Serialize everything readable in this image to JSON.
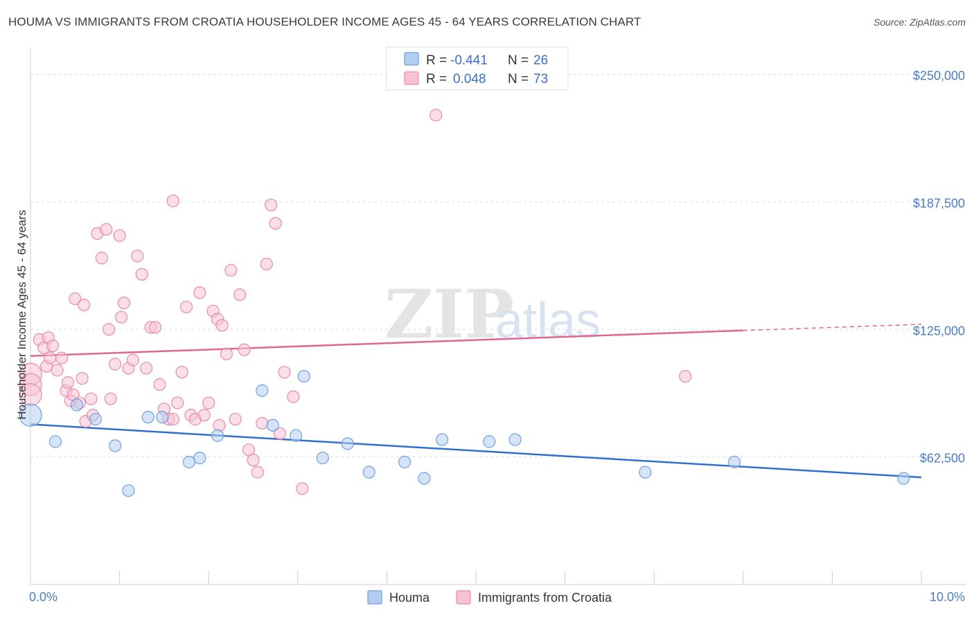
{
  "title": "HOUMA VS IMMIGRANTS FROM CROATIA HOUSEHOLDER INCOME AGES 45 - 64 YEARS CORRELATION CHART",
  "source": "Source: ZipAtlas.com",
  "watermark": {
    "zip": "ZIP",
    "atlas": "atlas"
  },
  "colors": {
    "houma_fill": "#b3cdf0",
    "houma_stroke": "#6f9fe0",
    "houma_line": "#2f6fcf",
    "croatia_fill": "#f7c3d3",
    "croatia_stroke": "#e88aa8",
    "croatia_line": "#e0668f",
    "grid": "#dddddd",
    "axis_text": "#4a7cc7"
  },
  "legend_stats": [
    {
      "r_label": "R =",
      "r_value": "-0.441",
      "n_label": "N =",
      "n_value": "26"
    },
    {
      "r_label": "R =",
      "r_value": "0.048",
      "n_label": "N =",
      "n_value": "73"
    }
  ],
  "chart_data": {
    "type": "scatter",
    "title": "HOUMA VS IMMIGRANTS FROM CROATIA HOUSEHOLDER INCOME AGES 45 - 64 YEARS CORRELATION CHART",
    "xlabel": "",
    "ylabel": "Householder Income Ages 45 - 64 years",
    "xlim": [
      0,
      10
    ],
    "ylim": [
      0,
      260000
    ],
    "x_tick_labels": [
      "0.0%",
      "10.0%"
    ],
    "y_ticks": [
      62500,
      125000,
      187500,
      250000
    ],
    "y_tick_labels": [
      "$62,500",
      "$125,000",
      "$187,500",
      "$250,000"
    ],
    "grid": true,
    "legend_position": "bottom-center",
    "series": [
      {
        "name": "Houma",
        "points": [
          [
            0.0,
            83000
          ],
          [
            0.28,
            70000
          ],
          [
            0.52,
            88000
          ],
          [
            0.73,
            81000
          ],
          [
            0.95,
            68000
          ],
          [
            1.1,
            46000
          ],
          [
            1.32,
            82000
          ],
          [
            1.48,
            82000
          ],
          [
            1.78,
            60000
          ],
          [
            1.9,
            62000
          ],
          [
            2.1,
            73000
          ],
          [
            2.6,
            95000
          ],
          [
            2.72,
            78000
          ],
          [
            2.98,
            73000
          ],
          [
            3.07,
            102000
          ],
          [
            3.28,
            62000
          ],
          [
            3.56,
            69000
          ],
          [
            3.8,
            55000
          ],
          [
            4.2,
            60000
          ],
          [
            4.42,
            52000
          ],
          [
            4.62,
            71000
          ],
          [
            5.15,
            70000
          ],
          [
            5.44,
            71000
          ],
          [
            6.9,
            55000
          ],
          [
            7.9,
            60000
          ],
          [
            9.8,
            52000
          ]
        ],
        "trend": {
          "x": [
            0.0,
            10.0
          ],
          "y": [
            78500,
            52500
          ]
        }
      },
      {
        "name": "Immigrants from Croatia",
        "points": [
          [
            0.0,
            103000
          ],
          [
            0.0,
            98000
          ],
          [
            0.0,
            93000
          ],
          [
            0.1,
            120000
          ],
          [
            0.15,
            116000
          ],
          [
            0.18,
            107000
          ],
          [
            0.2,
            121000
          ],
          [
            0.22,
            111000
          ],
          [
            0.25,
            117000
          ],
          [
            0.3,
            105000
          ],
          [
            0.35,
            111000
          ],
          [
            0.4,
            95000
          ],
          [
            0.42,
            99000
          ],
          [
            0.45,
            90000
          ],
          [
            0.48,
            93000
          ],
          [
            0.5,
            140000
          ],
          [
            0.55,
            89000
          ],
          [
            0.6,
            137000
          ],
          [
            0.62,
            80000
          ],
          [
            0.7,
            83000
          ],
          [
            0.75,
            172000
          ],
          [
            0.8,
            160000
          ],
          [
            0.85,
            174000
          ],
          [
            0.9,
            91000
          ],
          [
            0.95,
            108000
          ],
          [
            1.0,
            171000
          ],
          [
            1.05,
            138000
          ],
          [
            1.1,
            106000
          ],
          [
            1.15,
            110000
          ],
          [
            1.2,
            161000
          ],
          [
            1.25,
            152000
          ],
          [
            1.3,
            106000
          ],
          [
            1.35,
            126000
          ],
          [
            1.4,
            126000
          ],
          [
            1.5,
            86000
          ],
          [
            1.55,
            81000
          ],
          [
            1.6,
            188000
          ],
          [
            1.65,
            89000
          ],
          [
            1.7,
            104000
          ],
          [
            1.75,
            136000
          ],
          [
            1.8,
            83000
          ],
          [
            1.85,
            81000
          ],
          [
            1.9,
            143000
          ],
          [
            1.95,
            83000
          ],
          [
            2.0,
            89000
          ],
          [
            2.05,
            134000
          ],
          [
            2.1,
            130000
          ],
          [
            2.15,
            127000
          ],
          [
            2.2,
            113000
          ],
          [
            2.25,
            154000
          ],
          [
            2.3,
            81000
          ],
          [
            2.35,
            142000
          ],
          [
            2.4,
            115000
          ],
          [
            2.45,
            66000
          ],
          [
            2.5,
            61000
          ],
          [
            2.55,
            55000
          ],
          [
            2.6,
            79000
          ],
          [
            2.65,
            157000
          ],
          [
            2.7,
            186000
          ],
          [
            2.75,
            177000
          ],
          [
            2.8,
            74000
          ],
          [
            2.85,
            104000
          ],
          [
            2.95,
            92000
          ],
          [
            3.05,
            47000
          ],
          [
            4.55,
            230000
          ],
          [
            7.35,
            102000
          ],
          [
            0.58,
            101000
          ],
          [
            0.68,
            91000
          ],
          [
            1.45,
            98000
          ],
          [
            1.02,
            131000
          ],
          [
            0.88,
            125000
          ],
          [
            1.6,
            81000
          ],
          [
            2.12,
            78000
          ]
        ],
        "trend": {
          "x": [
            0.0,
            8.0
          ],
          "y": [
            112000,
            124500
          ]
        },
        "trend_dashed": {
          "x": [
            8.0,
            10.0
          ],
          "y": [
            124500,
            127500
          ]
        }
      }
    ]
  }
}
